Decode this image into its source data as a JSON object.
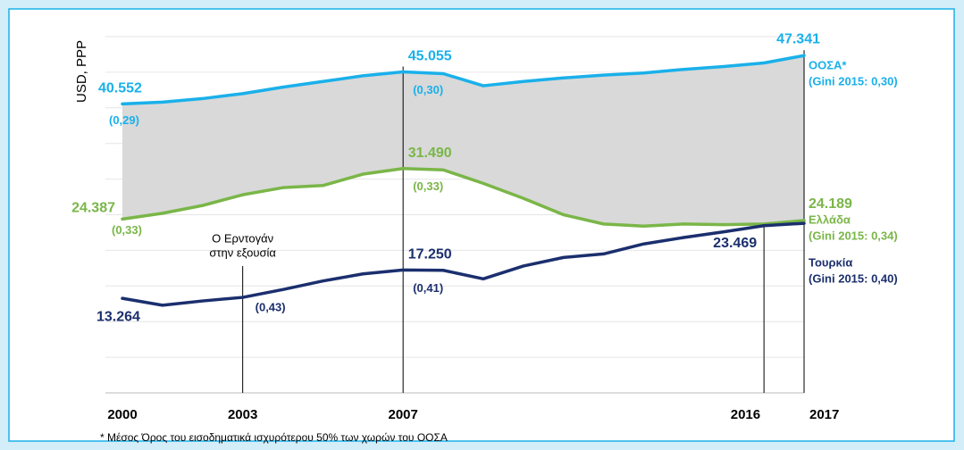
{
  "chart_data": {
    "type": "line",
    "y_label": "USD, PPP",
    "x": [
      2000,
      2001,
      2002,
      2003,
      2004,
      2005,
      2006,
      2007,
      2008,
      2009,
      2010,
      2011,
      2012,
      2013,
      2014,
      2015,
      2016,
      2017
    ],
    "xlim": [
      2000,
      2017
    ],
    "xticks": [
      2000,
      2003,
      2007,
      2016,
      2017
    ],
    "ylim": [
      0,
      50000
    ],
    "yticks": [
      0,
      5000,
      10000,
      15000,
      20000,
      25000,
      30000,
      35000,
      40000,
      45000,
      50000
    ],
    "grid": true,
    "fill_between": "#d9d9d9",
    "annotation": {
      "x": 2003,
      "lines": [
        "Ο Ερντογάν",
        "στην εξουσία"
      ]
    },
    "footnote": "* Μέσος Όρος του εισοδηματικά ισχυρότερου 50% των χωρών του ΟΟΣΑ",
    "series": [
      {
        "name": "ΟΟΣΑ*",
        "note": "(Gini 2015: 0,30)",
        "color": "#1ab0ea",
        "values": [
          40552,
          40800,
          41300,
          42000,
          42900,
          43700,
          44500,
          45055,
          44800,
          43100,
          43700,
          44200,
          44600,
          44900,
          45400,
          45800,
          46300,
          47341
        ],
        "value_labels": [
          "40.552",
          null,
          null,
          null,
          null,
          null,
          null,
          "45.055",
          null,
          null,
          null,
          null,
          null,
          null,
          null,
          null,
          null,
          "47.341"
        ],
        "gini_labels": [
          "(0,29)",
          null,
          null,
          null,
          null,
          null,
          null,
          "(0,30)",
          null,
          null,
          null,
          null,
          null,
          null,
          null,
          null,
          null,
          null
        ]
      },
      {
        "name": "Ελλάδα",
        "note": "(Gini 2015: 0,34)",
        "color": "#7ab648",
        "values": [
          24387,
          25200,
          26300,
          27800,
          28800,
          29100,
          30700,
          31490,
          31300,
          29400,
          27300,
          25000,
          23700,
          23400,
          23700,
          23600,
          23700,
          24189
        ],
        "value_labels": [
          "24.387",
          null,
          null,
          null,
          null,
          null,
          null,
          "31.490",
          null,
          null,
          null,
          null,
          null,
          null,
          null,
          null,
          null,
          "24.189"
        ],
        "gini_labels": [
          "(0,33)",
          null,
          null,
          null,
          null,
          null,
          null,
          "(0,33)",
          null,
          null,
          null,
          null,
          null,
          null,
          null,
          null,
          null,
          null
        ]
      },
      {
        "name": "Τουρκία",
        "note": "(Gini 2015: 0,40)",
        "color": "#1b2f6e",
        "values": [
          13264,
          12300,
          12900,
          13400,
          14500,
          15700,
          16700,
          17250,
          17200,
          16000,
          17800,
          19000,
          19500,
          20900,
          21800,
          22600,
          23469,
          23800
        ],
        "value_labels": [
          "13.264",
          null,
          null,
          null,
          null,
          null,
          null,
          "17.250",
          null,
          null,
          null,
          null,
          null,
          null,
          null,
          null,
          "23.469",
          null
        ],
        "gini_labels": [
          null,
          null,
          null,
          "(0,43)",
          null,
          null,
          null,
          "(0,41)",
          null,
          null,
          null,
          null,
          null,
          null,
          null,
          null,
          null,
          null
        ]
      }
    ]
  }
}
